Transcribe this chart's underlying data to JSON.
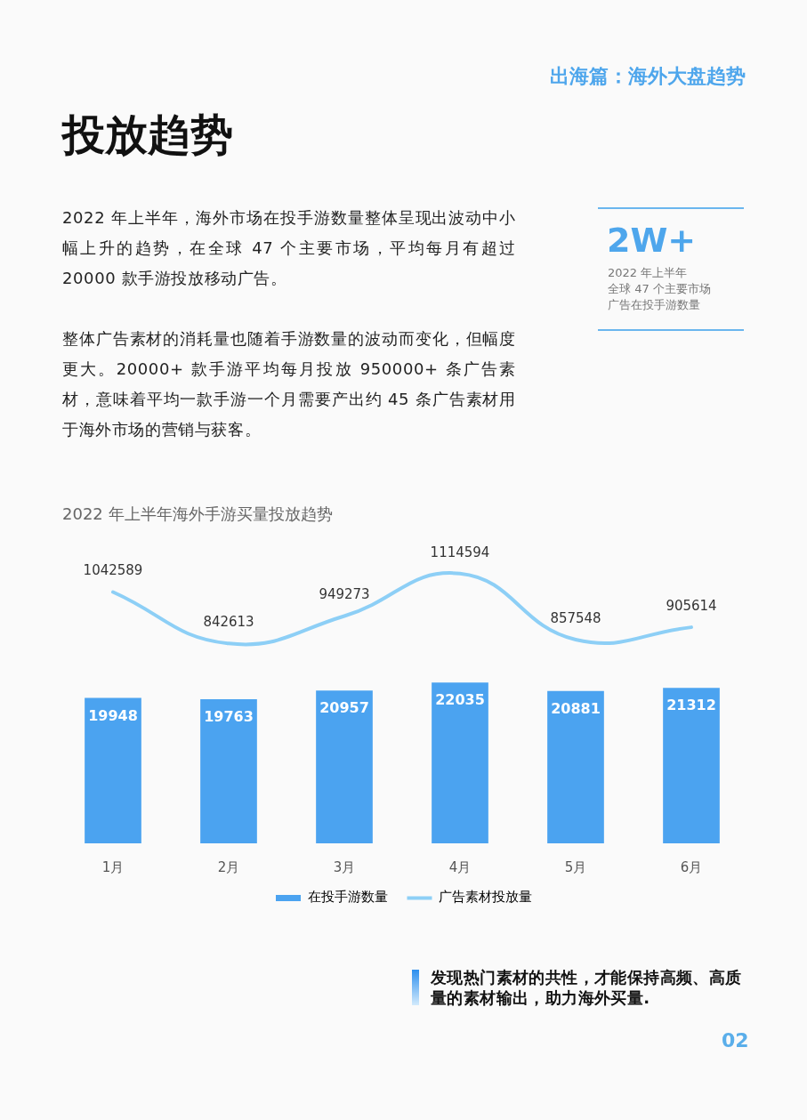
{
  "chart_data": [
    {
      "type": "line",
      "title": "2022 年上半年海外手游买量投放趋势",
      "categories": [
        null,
        null,
        null,
        null,
        null,
        null
      ],
      "series": [
        {
          "name": "广告素材投放量",
          "color": "#8dcff6",
          "values": [
            1042589,
            842613,
            949273,
            1114594,
            857548,
            905614
          ]
        }
      ],
      "data_labels": true,
      "legend": "bottom",
      "tick_labels": false,
      "annotations": [
        "出海篇：海外大盘趋势",
        "投放趋势",
        "2022 年上半年，海外市场在投手游数量整体呈现出波动中小幅上升的趋势，在全球 47 个主要市场，平均每月有超过 20000 款手游投放移动广告。",
        "整体广告素材的消耗量也随着手游数量的波动而变化，但幅度更大。20000+ 款手游平均每月投放 950000+ 条广告素材，意味着平均一款手游一个月需要产出约 45 条广告素材用于海外市场的营销与获客。",
        "2W+",
        "2022 年上半年",
        "全球 47 个主要市场",
        "广告在投手游数量",
        "发现热门素材的共性，才能保持高频、高质量的素材输出，助力海外买量.",
        "02"
      ]
    },
    {
      "type": "bar",
      "categories": [
        "1月",
        "2月",
        "3月",
        "4月",
        "5月",
        "6月"
      ],
      "series": [
        {
          "name": "在投手游数量",
          "color": "#4ba3f0",
          "values": [
            19948,
            19763,
            20957,
            22035,
            20881,
            21312
          ]
        }
      ],
      "data_labels": true,
      "legend": "bottom",
      "tick_labels": "x"
    }
  ]
}
